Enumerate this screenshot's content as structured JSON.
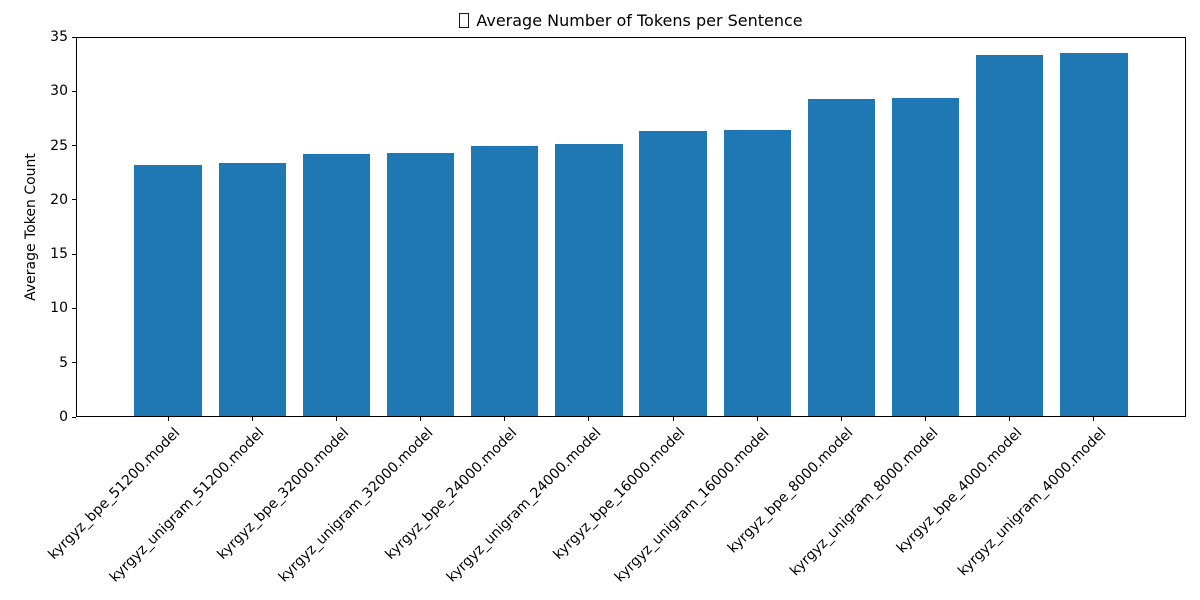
{
  "chart_data": {
    "type": "bar",
    "title": "Average Number of Tokens per Sentence",
    "title_prefix_icon": "missing-glyph-box",
    "categories": [
      "kyrgyz_bpe_51200.model",
      "kyrgyz_unigram_51200.model",
      "kyrgyz_bpe_32000.model",
      "kyrgyz_unigram_32000.model",
      "kyrgyz_bpe_24000.model",
      "kyrgyz_unigram_24000.model",
      "kyrgyz_bpe_16000.model",
      "kyrgyz_unigram_16000.model",
      "kyrgyz_bpe_8000.model",
      "kyrgyz_unigram_8000.model",
      "kyrgyz_bpe_4000.model",
      "kyrgyz_unigram_4000.model"
    ],
    "values": [
      23.2,
      23.4,
      24.2,
      24.3,
      25.0,
      25.1,
      26.3,
      26.4,
      29.3,
      29.4,
      33.3,
      33.5
    ],
    "xlabel": "",
    "ylabel": "Average Token Count",
    "ylim": [
      0,
      35
    ],
    "yticks": [
      0,
      5,
      10,
      15,
      20,
      25,
      30,
      35
    ],
    "x_tick_rotation_deg": 45,
    "grid": false,
    "legend": "none",
    "bar_color": "#1f77b4",
    "axis_color": "#000000",
    "background_color": "#ffffff"
  }
}
